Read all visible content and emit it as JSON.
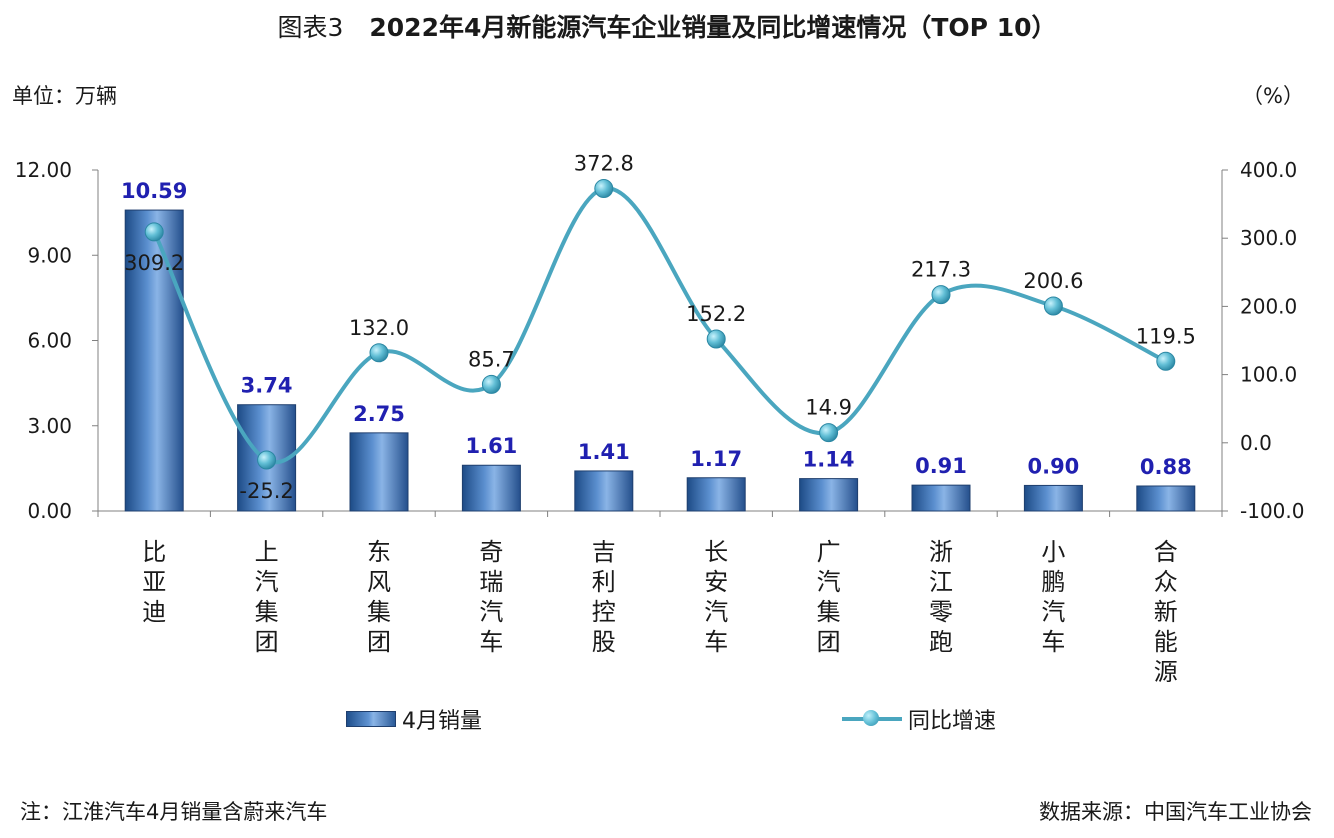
{
  "title": {
    "prefix": "图表3",
    "main": "2022年4月新能源汽车企业销量及同比增速情况（TOP 10）"
  },
  "units": {
    "left": "单位：万辆",
    "right": "（%）"
  },
  "legend": {
    "bar": "4月销量",
    "line": "同比增速"
  },
  "note": "注：江淮汽车4月销量含蔚来汽车",
  "source": "数据来源：中国汽车工业协会",
  "colors": {
    "bar": "#3b6fb0",
    "bar_label": "#2020b0",
    "line": "#4aa6bf",
    "axis": "#808080"
  },
  "chart_data": {
    "type": "bar",
    "categories": [
      "比亚迪",
      "上汽集团",
      "东风集团",
      "奇瑞汽车",
      "吉利控股",
      "长安汽车",
      "广汽集团",
      "浙江零跑",
      "小鹏汽车",
      "合众新能源"
    ],
    "series": [
      {
        "name": "4月销量",
        "type": "bar",
        "axis": "left",
        "values": [
          10.59,
          3.74,
          2.75,
          1.61,
          1.41,
          1.17,
          1.14,
          0.91,
          0.9,
          0.88
        ],
        "labels": [
          "10.59",
          "3.74",
          "2.75",
          "1.61",
          "1.41",
          "1.17",
          "1.14",
          "0.91",
          "0.90",
          "0.88"
        ]
      },
      {
        "name": "同比增速",
        "type": "line",
        "axis": "right",
        "values": [
          309.2,
          -25.2,
          132.0,
          85.7,
          372.8,
          152.2,
          14.9,
          217.3,
          200.6,
          119.5
        ],
        "labels": [
          "309.2",
          "-25.2",
          "132.0",
          "85.7",
          "372.8",
          "152.2",
          "14.9",
          "217.3",
          "200.6",
          "119.5"
        ]
      }
    ],
    "y_left": {
      "min": 0,
      "max": 12,
      "ticks": [
        "0.00",
        "3.00",
        "6.00",
        "9.00",
        "12.00"
      ]
    },
    "y_right": {
      "min": -100,
      "max": 400,
      "ticks": [
        "-100.0",
        "0.0",
        "100.0",
        "200.0",
        "300.0",
        "400.0"
      ]
    },
    "grid": false,
    "legend_position": "bottom"
  }
}
